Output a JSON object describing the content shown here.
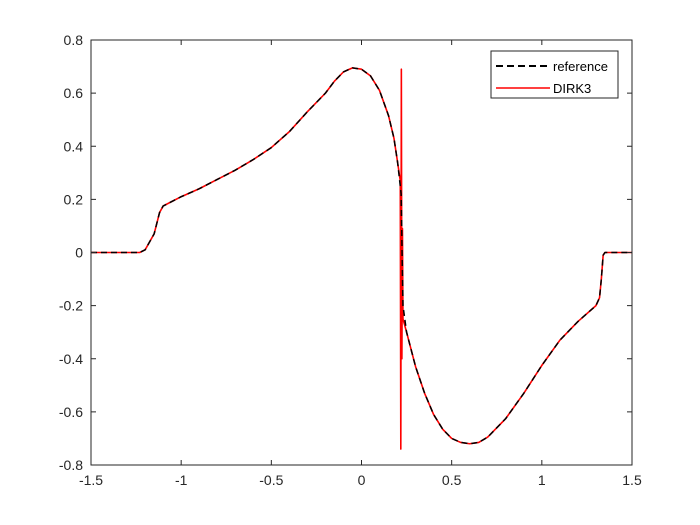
{
  "chart_data": {
    "type": "line",
    "title": "",
    "xlabel": "",
    "ylabel": "",
    "xlim": [
      -1.5,
      1.5
    ],
    "ylim": [
      -0.8,
      0.8
    ],
    "x_ticks": [
      -1.5,
      -1,
      -0.5,
      0,
      0.5,
      1,
      1.5
    ],
    "x_tick_labels": [
      "-1.5",
      "-1",
      "-0.5",
      "0",
      "0.5",
      "1",
      "1.5"
    ],
    "y_ticks": [
      -0.8,
      -0.6,
      -0.4,
      -0.2,
      0,
      0.2,
      0.4,
      0.6,
      0.8
    ],
    "y_tick_labels": [
      "-0.8",
      "-0.6",
      "-0.4",
      "-0.2",
      "0",
      "0.2",
      "0.4",
      "0.6",
      "0.8"
    ],
    "grid": false,
    "legend_position": "top-right",
    "series": [
      {
        "name": "reference",
        "color": "#000000",
        "style": "dashed",
        "points": [
          [
            -1.5,
            0
          ],
          [
            -1.23,
            0
          ],
          [
            -1.2,
            0.01
          ],
          [
            -1.15,
            0.07
          ],
          [
            -1.12,
            0.15
          ],
          [
            -1.1,
            0.175
          ],
          [
            -1.0,
            0.21
          ],
          [
            -0.9,
            0.24
          ],
          [
            -0.8,
            0.275
          ],
          [
            -0.7,
            0.31
          ],
          [
            -0.6,
            0.35
          ],
          [
            -0.5,
            0.395
          ],
          [
            -0.4,
            0.455
          ],
          [
            -0.3,
            0.53
          ],
          [
            -0.2,
            0.6
          ],
          [
            -0.15,
            0.645
          ],
          [
            -0.1,
            0.68
          ],
          [
            -0.05,
            0.695
          ],
          [
            0.0,
            0.69
          ],
          [
            0.05,
            0.665
          ],
          [
            0.1,
            0.61
          ],
          [
            0.15,
            0.515
          ],
          [
            0.18,
            0.43
          ],
          [
            0.2,
            0.34
          ],
          [
            0.22,
            0.22
          ],
          [
            0.225,
            0.0
          ],
          [
            0.23,
            -0.2
          ],
          [
            0.25,
            -0.3
          ],
          [
            0.3,
            -0.43
          ],
          [
            0.35,
            -0.53
          ],
          [
            0.4,
            -0.61
          ],
          [
            0.45,
            -0.665
          ],
          [
            0.5,
            -0.7
          ],
          [
            0.55,
            -0.715
          ],
          [
            0.6,
            -0.72
          ],
          [
            0.65,
            -0.715
          ],
          [
            0.7,
            -0.695
          ],
          [
            0.8,
            -0.625
          ],
          [
            0.9,
            -0.53
          ],
          [
            1.0,
            -0.425
          ],
          [
            1.1,
            -0.33
          ],
          [
            1.2,
            -0.26
          ],
          [
            1.3,
            -0.2
          ],
          [
            1.32,
            -0.17
          ],
          [
            1.33,
            -0.1
          ],
          [
            1.34,
            -0.01
          ],
          [
            1.35,
            0
          ],
          [
            1.5,
            0
          ]
        ]
      },
      {
        "name": "DIRK3",
        "color": "#ff0000",
        "style": "solid",
        "points": [
          [
            -1.5,
            0
          ],
          [
            -1.23,
            0
          ],
          [
            -1.2,
            0.01
          ],
          [
            -1.15,
            0.07
          ],
          [
            -1.12,
            0.15
          ],
          [
            -1.1,
            0.175
          ],
          [
            -1.0,
            0.21
          ],
          [
            -0.9,
            0.24
          ],
          [
            -0.8,
            0.275
          ],
          [
            -0.7,
            0.31
          ],
          [
            -0.6,
            0.35
          ],
          [
            -0.5,
            0.395
          ],
          [
            -0.4,
            0.455
          ],
          [
            -0.3,
            0.53
          ],
          [
            -0.2,
            0.6
          ],
          [
            -0.15,
            0.645
          ],
          [
            -0.1,
            0.68
          ],
          [
            -0.05,
            0.695
          ],
          [
            0.0,
            0.69
          ],
          [
            0.05,
            0.665
          ],
          [
            0.1,
            0.61
          ],
          [
            0.15,
            0.515
          ],
          [
            0.18,
            0.43
          ],
          [
            0.2,
            0.34
          ],
          [
            0.215,
            0.27
          ],
          [
            0.218,
            -0.74
          ],
          [
            0.221,
            0.69
          ],
          [
            0.224,
            -0.4
          ],
          [
            0.227,
            0.09
          ],
          [
            0.23,
            -0.25
          ],
          [
            0.25,
            -0.3
          ],
          [
            0.3,
            -0.43
          ],
          [
            0.35,
            -0.53
          ],
          [
            0.4,
            -0.61
          ],
          [
            0.45,
            -0.665
          ],
          [
            0.5,
            -0.7
          ],
          [
            0.55,
            -0.715
          ],
          [
            0.6,
            -0.72
          ],
          [
            0.65,
            -0.715
          ],
          [
            0.7,
            -0.695
          ],
          [
            0.8,
            -0.625
          ],
          [
            0.9,
            -0.53
          ],
          [
            1.0,
            -0.425
          ],
          [
            1.1,
            -0.33
          ],
          [
            1.2,
            -0.26
          ],
          [
            1.3,
            -0.2
          ],
          [
            1.32,
            -0.17
          ],
          [
            1.33,
            -0.1
          ],
          [
            1.34,
            -0.01
          ],
          [
            1.35,
            0
          ],
          [
            1.5,
            0
          ]
        ]
      }
    ]
  }
}
